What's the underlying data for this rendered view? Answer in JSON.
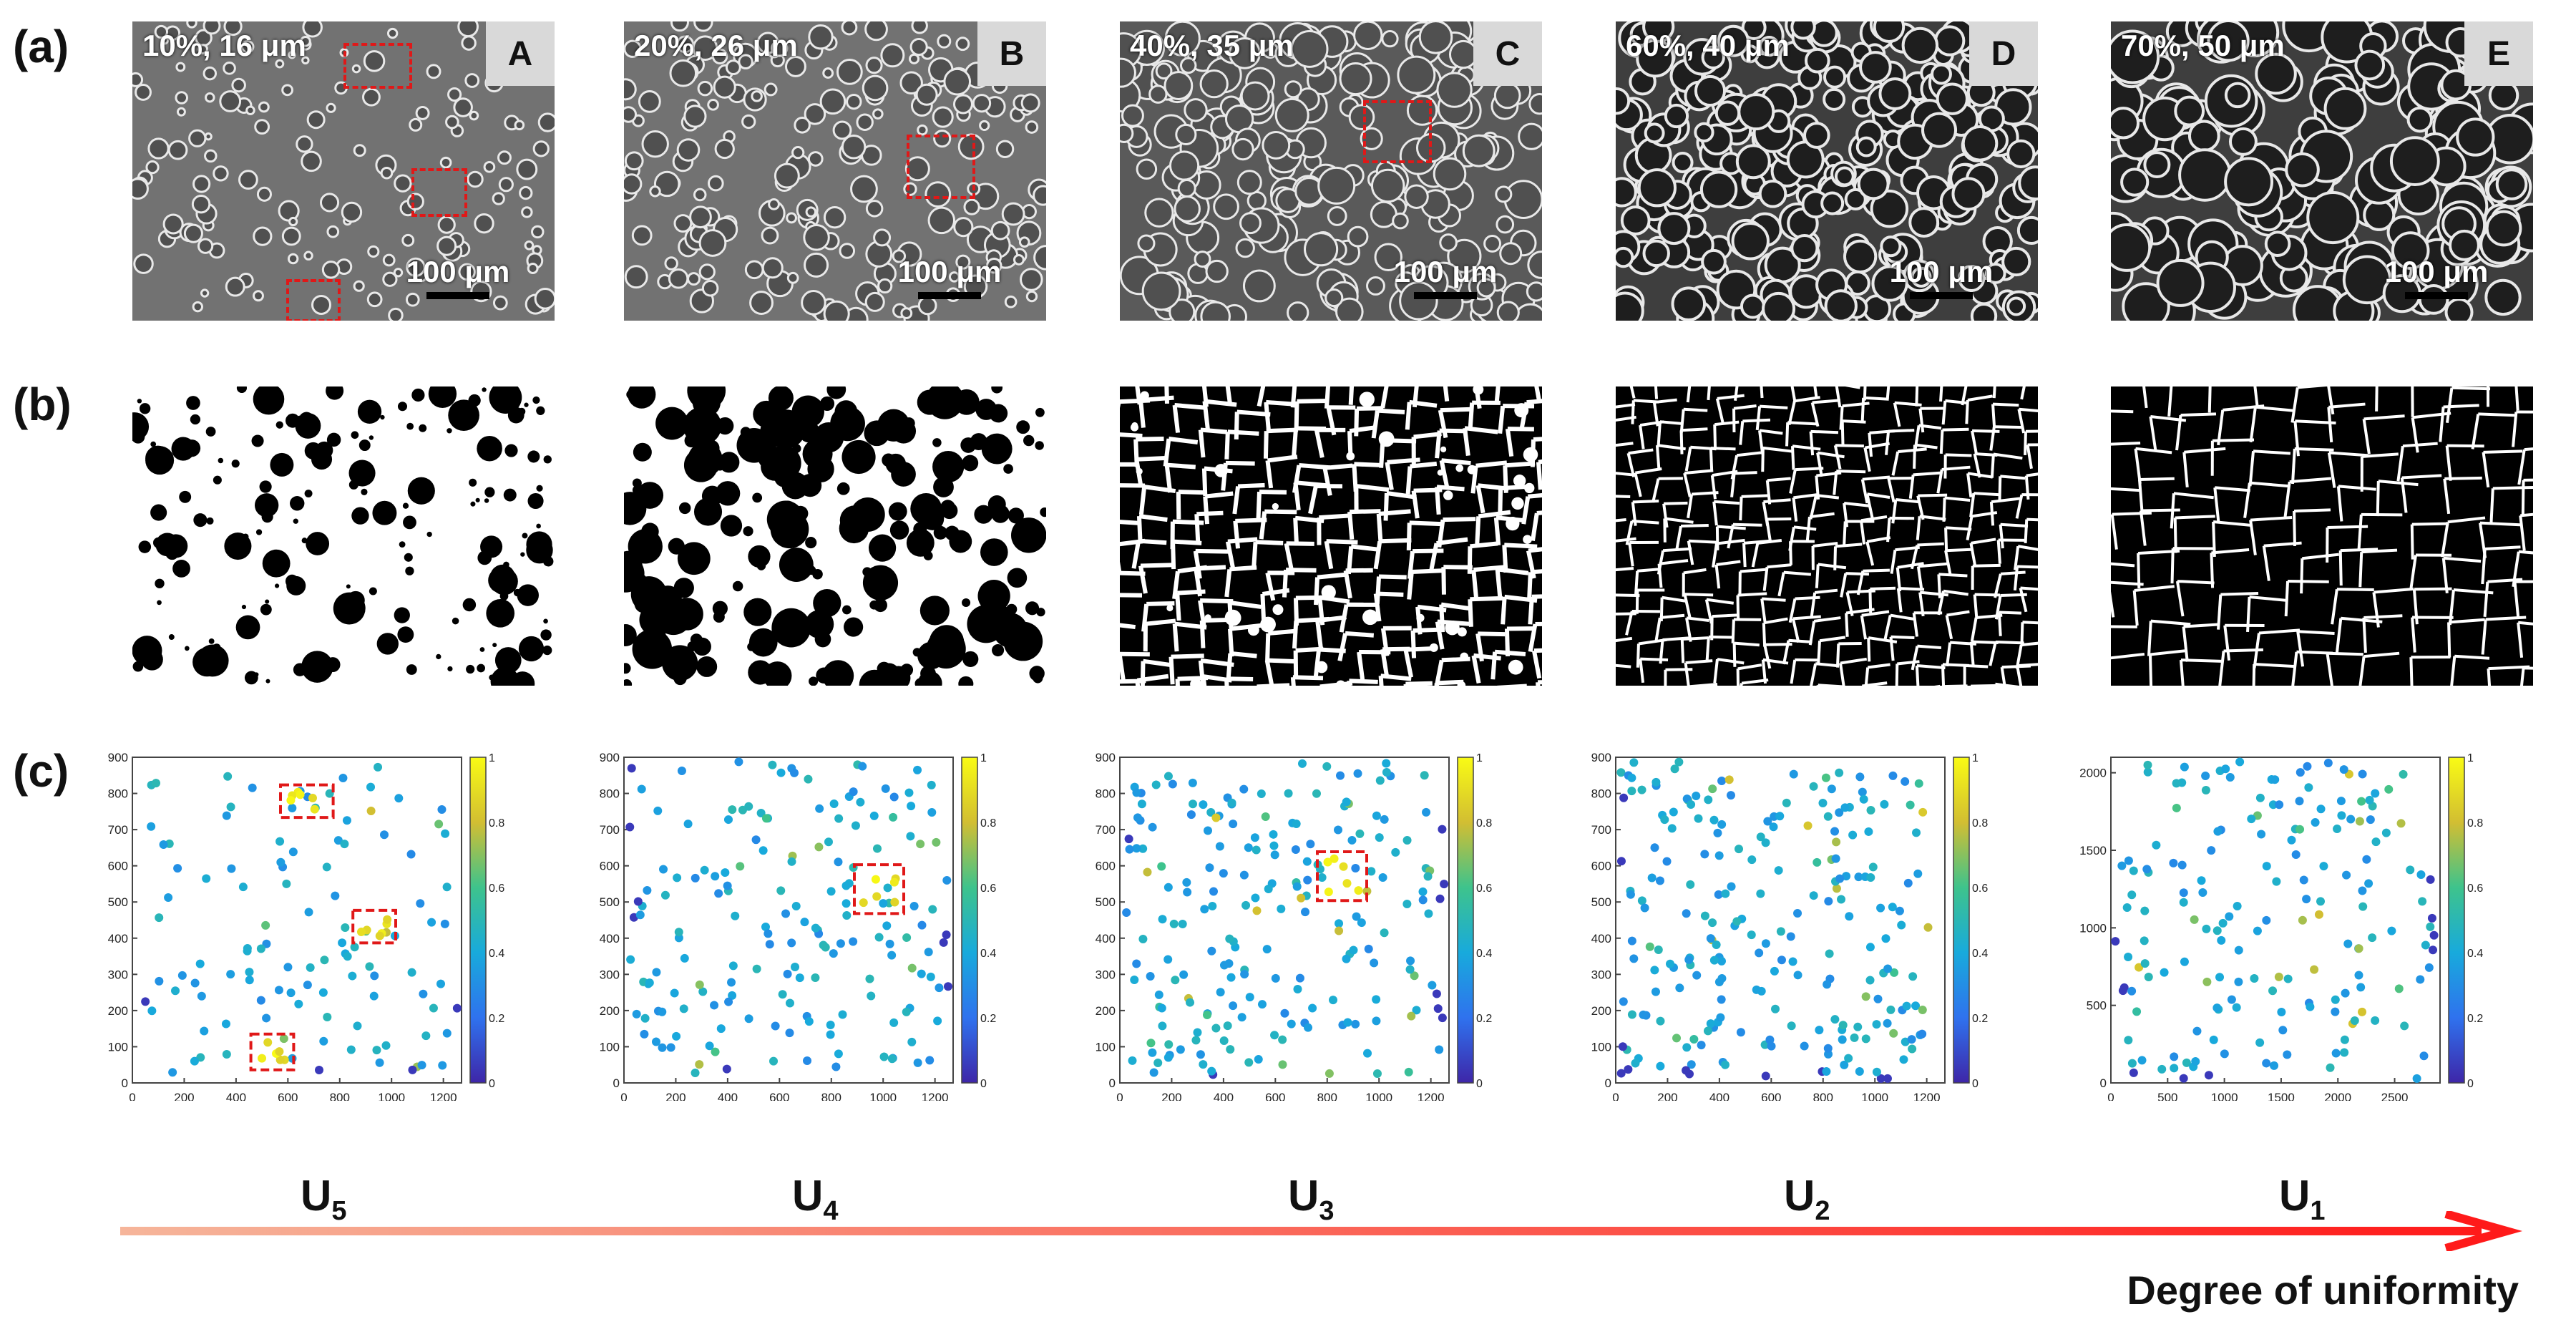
{
  "row_labels": [
    "(a)",
    "(b)",
    "(c)"
  ],
  "panels": [
    {
      "letter": "A",
      "caption": "10%, 16 μm",
      "scale": "100 μm",
      "u_main": "U",
      "u_sub": "5",
      "fill": 0.1,
      "xmax": 1270,
      "ymax": 900,
      "xticks": [
        "0",
        "200",
        "400",
        "600",
        "800",
        "1000",
        "1200"
      ],
      "yticks": [
        "0",
        "100",
        "200",
        "300",
        "400",
        "500",
        "600",
        "700",
        "800",
        "900"
      ]
    },
    {
      "letter": "B",
      "caption": "20%, 26 μm",
      "scale": "100 μm",
      "u_main": "U",
      "u_sub": "4",
      "fill": 0.2,
      "xmax": 1270,
      "ymax": 900,
      "xticks": [
        "0",
        "200",
        "400",
        "600",
        "800",
        "1000",
        "1200"
      ],
      "yticks": [
        "0",
        "100",
        "200",
        "300",
        "400",
        "500",
        "600",
        "700",
        "800",
        "900"
      ]
    },
    {
      "letter": "C",
      "caption": "40%, 35 μm",
      "scale": "100 μm",
      "u_main": "U",
      "u_sub": "3",
      "fill": 0.4,
      "xmax": 1270,
      "ymax": 900,
      "xticks": [
        "0",
        "200",
        "400",
        "600",
        "800",
        "1000",
        "1200"
      ],
      "yticks": [
        "0",
        "100",
        "200",
        "300",
        "400",
        "500",
        "600",
        "700",
        "800",
        "900"
      ]
    },
    {
      "letter": "D",
      "caption": "60%, 40 μm",
      "scale": "100 μm",
      "u_main": "U",
      "u_sub": "2",
      "fill": 0.6,
      "xmax": 1270,
      "ymax": 900,
      "xticks": [
        "0",
        "200",
        "400",
        "600",
        "800",
        "1000",
        "1200"
      ],
      "yticks": [
        "0",
        "100",
        "200",
        "300",
        "400",
        "500",
        "600",
        "700",
        "800",
        "900"
      ]
    },
    {
      "letter": "E",
      "caption": "70%, 50 μm",
      "scale": "100 μm",
      "u_main": "U",
      "u_sub": "1",
      "fill": 0.7,
      "xmax": 2900,
      "ymax": 2100,
      "xticks": [
        "0",
        "500",
        "1000",
        "1500",
        "2000",
        "2500"
      ],
      "yticks": [
        "0",
        "500",
        "1000",
        "1500",
        "2000"
      ]
    }
  ],
  "colorbar_ticks": [
    "0",
    "0.2",
    "0.4",
    "0.6",
    "0.8",
    "1"
  ],
  "arrow_label": "Degree of uniformity",
  "colors": {
    "arrow_start": "#f6b59a",
    "arrow_end": "#ff1a1a",
    "highlight_box": "#e01818"
  }
}
